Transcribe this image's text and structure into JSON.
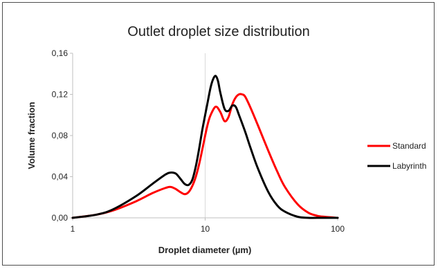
{
  "chart_data": {
    "type": "line",
    "title": "Outlet droplet size distribution",
    "xlabel": "Droplet diameter (µm)",
    "ylabel": "Volume fraction",
    "xscale": "log",
    "xlim": [
      1,
      100
    ],
    "ylim": [
      0,
      0.16
    ],
    "xticks": [
      1,
      10,
      100
    ],
    "xtick_labels": [
      "1",
      "10",
      "100"
    ],
    "yticks": [
      0,
      0.04,
      0.08,
      0.12,
      0.16
    ],
    "ytick_labels": [
      "0,00",
      "0,04",
      "0,08",
      "0,12",
      "0,16"
    ],
    "grid": "vertical",
    "legend_position": "right",
    "series": [
      {
        "name": "Standard",
        "color": "#ff0000",
        "x": [
          1,
          1.5,
          2,
          3,
          4,
          5,
          5.5,
          6,
          6.5,
          7,
          7.5,
          8,
          8.5,
          9,
          9.5,
          10,
          10.5,
          11,
          12,
          13,
          14,
          15,
          16,
          17,
          18,
          19,
          20,
          22,
          25,
          30,
          35,
          40,
          50,
          60,
          70,
          80,
          100
        ],
        "y": [
          0,
          0.003,
          0.007,
          0.016,
          0.024,
          0.029,
          0.03,
          0.028,
          0.025,
          0.023,
          0.025,
          0.031,
          0.04,
          0.052,
          0.066,
          0.08,
          0.092,
          0.1,
          0.108,
          0.103,
          0.094,
          0.098,
          0.11,
          0.117,
          0.12,
          0.12,
          0.118,
          0.107,
          0.09,
          0.065,
          0.045,
          0.03,
          0.013,
          0.005,
          0.002,
          0.001,
          0
        ]
      },
      {
        "name": "Labyrinth",
        "color": "#000000",
        "x": [
          1,
          1.5,
          2,
          3,
          4,
          5,
          5.5,
          6,
          6.5,
          7,
          7.5,
          8,
          8.5,
          9,
          9.5,
          10,
          10.5,
          11,
          11.5,
          12,
          12.5,
          13,
          14,
          15,
          16,
          17,
          18,
          20,
          22,
          25,
          30,
          35,
          40,
          50,
          60,
          70,
          100
        ],
        "y": [
          0,
          0.003,
          0.008,
          0.021,
          0.033,
          0.042,
          0.044,
          0.043,
          0.038,
          0.033,
          0.032,
          0.037,
          0.05,
          0.067,
          0.085,
          0.1,
          0.114,
          0.127,
          0.135,
          0.138,
          0.133,
          0.122,
          0.106,
          0.104,
          0.109,
          0.108,
          0.1,
          0.084,
          0.068,
          0.048,
          0.025,
          0.012,
          0.006,
          0.001,
          0,
          0,
          0
        ]
      }
    ]
  }
}
